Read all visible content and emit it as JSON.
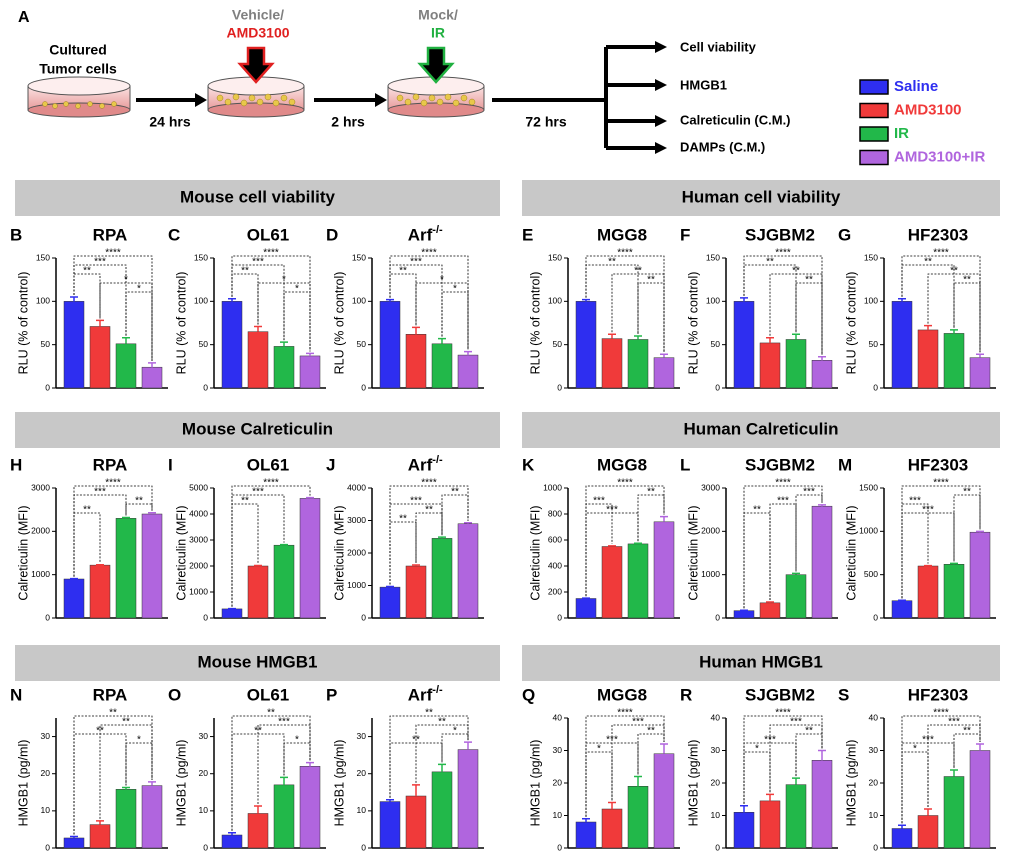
{
  "schematic": {
    "panel": "A",
    "start_lines": [
      "Cultured",
      "Tumor cells"
    ],
    "step1_time": "24 hrs",
    "treat1_control": "Vehicle/",
    "treat1_drug": "AMD3100",
    "step2_time": "2 hrs",
    "treat2_control": "Mock/",
    "treat2_drug": "IR",
    "step3_time": "72 hrs",
    "outputs": [
      "Cell viability",
      "HMGB1",
      "Calreticulin  (C.M.)",
      "DAMPs (C.M.)"
    ]
  },
  "legend": {
    "items": [
      {
        "name": "Saline",
        "color": "#2e2ef0"
      },
      {
        "name": "AMD3100",
        "color": "#f03a3a"
      },
      {
        "name": "IR",
        "color": "#22b84a"
      },
      {
        "name": "AMD3100+IR",
        "color": "#b065de"
      }
    ]
  },
  "sections": [
    "Mouse cell viability",
    "Human cell viability",
    "Mouse Calreticulin",
    "Human Calreticulin",
    "Mouse HMGB1",
    "Human HMGB1"
  ],
  "chart_data": [
    {
      "type": "bar",
      "panel": "B",
      "title": "RPA",
      "ylabel": "RLU (% of control)",
      "ylim": [
        0,
        150
      ],
      "yticks": [
        0,
        50,
        100,
        150
      ],
      "values": [
        100,
        71,
        51,
        24
      ],
      "errors": [
        5,
        7,
        7,
        5
      ],
      "annotations": [
        {
          "from": 0,
          "to": 3,
          "label": "****"
        },
        {
          "from": 0,
          "to": 2,
          "label": "***"
        },
        {
          "from": 0,
          "to": 1,
          "label": "**"
        },
        {
          "from": 1,
          "to": 3,
          "label": "*"
        },
        {
          "from": 2,
          "to": 3,
          "label": "*"
        }
      ]
    },
    {
      "type": "bar",
      "panel": "C",
      "title": "OL61",
      "ylabel": "RLU (% of control)",
      "ylim": [
        0,
        150
      ],
      "yticks": [
        0,
        50,
        100,
        150
      ],
      "values": [
        100,
        65,
        48,
        37
      ],
      "errors": [
        3,
        6,
        5,
        3
      ],
      "annotations": [
        {
          "from": 0,
          "to": 3,
          "label": "****"
        },
        {
          "from": 0,
          "to": 2,
          "label": "***"
        },
        {
          "from": 0,
          "to": 1,
          "label": "**"
        },
        {
          "from": 1,
          "to": 3,
          "label": "*"
        },
        {
          "from": 2,
          "to": 3,
          "label": "*"
        }
      ]
    },
    {
      "type": "bar",
      "panel": "D",
      "title": "Arf",
      "title_sup": "-/-",
      "ylabel": "RLU (% of control)",
      "ylim": [
        0,
        150
      ],
      "yticks": [
        0,
        50,
        100,
        150
      ],
      "values": [
        100,
        62,
        51,
        38
      ],
      "errors": [
        2,
        8,
        6,
        4
      ],
      "annotations": [
        {
          "from": 0,
          "to": 3,
          "label": "****"
        },
        {
          "from": 0,
          "to": 2,
          "label": "***"
        },
        {
          "from": 0,
          "to": 1,
          "label": "**"
        },
        {
          "from": 1,
          "to": 3,
          "label": "*"
        },
        {
          "from": 2,
          "to": 3,
          "label": "*"
        }
      ]
    },
    {
      "type": "bar",
      "panel": "E",
      "title": "MGG8",
      "ylabel": "RLU (% of control)",
      "ylim": [
        0,
        150
      ],
      "yticks": [
        0,
        50,
        100,
        150
      ],
      "values": [
        100,
        57,
        56,
        35
      ],
      "errors": [
        2,
        5,
        4,
        4
      ],
      "annotations": [
        {
          "from": 0,
          "to": 3,
          "label": "****"
        },
        {
          "from": 0,
          "to": 2,
          "label": "**"
        },
        {
          "from": 1,
          "to": 3,
          "label": "**"
        },
        {
          "from": 2,
          "to": 3,
          "label": "**"
        }
      ]
    },
    {
      "type": "bar",
      "panel": "F",
      "title": "SJGBM2",
      "ylabel": "RLU (% of control)",
      "ylim": [
        0,
        150
      ],
      "yticks": [
        0,
        50,
        100,
        150
      ],
      "values": [
        100,
        52,
        56,
        32
      ],
      "errors": [
        4,
        6,
        6,
        4
      ],
      "annotations": [
        {
          "from": 0,
          "to": 3,
          "label": "****"
        },
        {
          "from": 0,
          "to": 2,
          "label": "**"
        },
        {
          "from": 1,
          "to": 3,
          "label": "**"
        },
        {
          "from": 2,
          "to": 3,
          "label": "**"
        }
      ]
    },
    {
      "type": "bar",
      "panel": "G",
      "title": "HF2303",
      "ylabel": "RLU (% of control)",
      "ylim": [
        0,
        150
      ],
      "yticks": [
        0,
        50,
        100,
        150
      ],
      "values": [
        100,
        67,
        63,
        35
      ],
      "errors": [
        3,
        5,
        4,
        4
      ],
      "annotations": [
        {
          "from": 0,
          "to": 3,
          "label": "****"
        },
        {
          "from": 0,
          "to": 2,
          "label": "**"
        },
        {
          "from": 1,
          "to": 3,
          "label": "**"
        },
        {
          "from": 2,
          "to": 3,
          "label": "**"
        }
      ]
    },
    {
      "type": "bar",
      "panel": "H",
      "title": "RPA",
      "ylabel": "Calreticulin (MFI)",
      "ylim": [
        0,
        3000
      ],
      "yticks": [
        0,
        1000,
        2000,
        3000
      ],
      "values": [
        900,
        1220,
        2300,
        2400
      ],
      "errors": [
        10,
        10,
        20,
        30
      ],
      "annotations": [
        {
          "from": 0,
          "to": 3,
          "label": "****"
        },
        {
          "from": 0,
          "to": 2,
          "label": "***"
        },
        {
          "from": 2,
          "to": 3,
          "label": "**"
        },
        {
          "from": 0,
          "to": 1,
          "label": "**"
        }
      ]
    },
    {
      "type": "bar",
      "panel": "I",
      "title": "OL61",
      "ylabel": "Calreticulin (MFI)",
      "ylim": [
        0,
        5000
      ],
      "yticks": [
        0,
        1000,
        2000,
        3000,
        4000,
        5000
      ],
      "values": [
        350,
        2000,
        2800,
        4600
      ],
      "errors": [
        10,
        20,
        20,
        30
      ],
      "annotations": [
        {
          "from": 0,
          "to": 3,
          "label": "****"
        },
        {
          "from": 0,
          "to": 2,
          "label": "***"
        },
        {
          "from": 0,
          "to": 1,
          "label": "**"
        }
      ]
    },
    {
      "type": "bar",
      "panel": "J",
      "title": "Arf",
      "title_sup": "-/-",
      "ylabel": "Calreticulin (MFI)",
      "ylim": [
        0,
        4000
      ],
      "yticks": [
        0,
        1000,
        2000,
        3000,
        4000
      ],
      "values": [
        950,
        1600,
        2450,
        2900
      ],
      "errors": [
        20,
        30,
        40,
        30
      ],
      "annotations": [
        {
          "from": 0,
          "to": 3,
          "label": "****"
        },
        {
          "from": 2,
          "to": 3,
          "label": "**"
        },
        {
          "from": 0,
          "to": 2,
          "label": "***"
        },
        {
          "from": 1,
          "to": 2,
          "label": "**"
        },
        {
          "from": 0,
          "to": 1,
          "label": "**"
        }
      ]
    },
    {
      "type": "bar",
      "panel": "K",
      "title": "MGG8",
      "ylabel": "Calreticulin (MFI)",
      "ylim": [
        0,
        1000
      ],
      "yticks": [
        0,
        200,
        400,
        600,
        800,
        1000
      ],
      "values": [
        150,
        550,
        570,
        740
      ],
      "errors": [
        3,
        5,
        5,
        40
      ],
      "annotations": [
        {
          "from": 0,
          "to": 3,
          "label": "****"
        },
        {
          "from": 2,
          "to": 3,
          "label": "**"
        },
        {
          "from": 0,
          "to": 1,
          "label": "***"
        },
        {
          "from": 0,
          "to": 2,
          "label": "***"
        }
      ]
    },
    {
      "type": "bar",
      "panel": "L",
      "title": "SJGBM2",
      "ylabel": "Calreticulin (MFI)",
      "ylim": [
        0,
        3000
      ],
      "yticks": [
        0,
        1000,
        2000,
        3000
      ],
      "values": [
        170,
        350,
        1000,
        2580
      ],
      "errors": [
        10,
        20,
        30,
        30
      ],
      "annotations": [
        {
          "from": 0,
          "to": 3,
          "label": "****"
        },
        {
          "from": 2,
          "to": 3,
          "label": "***"
        },
        {
          "from": 1,
          "to": 2,
          "label": "***"
        },
        {
          "from": 0,
          "to": 1,
          "label": "**"
        }
      ]
    },
    {
      "type": "bar",
      "panel": "M",
      "title": "HF2303",
      "ylabel": "Calreticulin (MFI)",
      "ylim": [
        0,
        1500
      ],
      "yticks": [
        0,
        500,
        1000,
        1500
      ],
      "values": [
        200,
        600,
        620,
        990
      ],
      "errors": [
        5,
        5,
        10,
        10
      ],
      "annotations": [
        {
          "from": 0,
          "to": 3,
          "label": "****"
        },
        {
          "from": 2,
          "to": 3,
          "label": "**"
        },
        {
          "from": 0,
          "to": 1,
          "label": "***"
        },
        {
          "from": 0,
          "to": 2,
          "label": "***"
        }
      ]
    },
    {
      "type": "bar",
      "panel": "N",
      "title": "RPA",
      "ylabel": "HMGB1 (pg/ml)",
      "ylim": [
        0,
        35
      ],
      "yticks": [
        0,
        10,
        20,
        30
      ],
      "values": [
        2.7,
        6.3,
        15.8,
        16.8
      ],
      "errors": [
        0.4,
        1,
        0.5,
        1
      ],
      "annotations": [
        {
          "from": 0,
          "to": 3,
          "label": "**"
        },
        {
          "from": 1,
          "to": 3,
          "label": "**"
        },
        {
          "from": 0,
          "to": 2,
          "label": "**"
        },
        {
          "from": 2,
          "to": 3,
          "label": "*"
        }
      ]
    },
    {
      "type": "bar",
      "panel": "O",
      "title": "OL61",
      "ylabel": "HMGB1 (pg/ml)",
      "ylim": [
        0,
        35
      ],
      "yticks": [
        0,
        10,
        20,
        30
      ],
      "values": [
        3.5,
        9.3,
        17,
        22
      ],
      "errors": [
        0.6,
        2,
        2,
        1
      ],
      "annotations": [
        {
          "from": 0,
          "to": 3,
          "label": "**"
        },
        {
          "from": 1,
          "to": 3,
          "label": "***"
        },
        {
          "from": 0,
          "to": 2,
          "label": "**"
        },
        {
          "from": 2,
          "to": 3,
          "label": "*"
        }
      ]
    },
    {
      "type": "bar",
      "panel": "P",
      "title": "Arf",
      "title_sup": "-/-",
      "ylabel": "HMGB1 (pg/ml)",
      "ylim": [
        0,
        35
      ],
      "yticks": [
        0,
        10,
        20,
        30
      ],
      "values": [
        12.5,
        14,
        20.5,
        26.5
      ],
      "errors": [
        0.5,
        3,
        2,
        2
      ],
      "annotations": [
        {
          "from": 0,
          "to": 3,
          "label": "**"
        },
        {
          "from": 1,
          "to": 3,
          "label": "**"
        },
        {
          "from": 2,
          "to": 3,
          "label": "*"
        },
        {
          "from": 0,
          "to": 2,
          "label": "**"
        }
      ]
    },
    {
      "type": "bar",
      "panel": "Q",
      "title": "MGG8",
      "ylabel": "HMGB1 (pg/ml)",
      "ylim": [
        0,
        40
      ],
      "yticks": [
        0,
        10,
        20,
        30,
        40
      ],
      "values": [
        8,
        12,
        19,
        29
      ],
      "errors": [
        1,
        2,
        3,
        3
      ],
      "annotations": [
        {
          "from": 0,
          "to": 3,
          "label": "****"
        },
        {
          "from": 1,
          "to": 3,
          "label": "***"
        },
        {
          "from": 2,
          "to": 3,
          "label": "**"
        },
        {
          "from": 0,
          "to": 2,
          "label": "***"
        },
        {
          "from": 0,
          "to": 1,
          "label": "*"
        }
      ]
    },
    {
      "type": "bar",
      "panel": "R",
      "title": "SJGBM2",
      "ylabel": "HMGB1 (pg/ml)",
      "ylim": [
        0,
        40
      ],
      "yticks": [
        0,
        10,
        20,
        30,
        40
      ],
      "values": [
        11,
        14.5,
        19.5,
        27
      ],
      "errors": [
        2,
        2,
        2,
        3
      ],
      "annotations": [
        {
          "from": 0,
          "to": 3,
          "label": "****"
        },
        {
          "from": 1,
          "to": 3,
          "label": "***"
        },
        {
          "from": 2,
          "to": 3,
          "label": "**"
        },
        {
          "from": 0,
          "to": 2,
          "label": "***"
        },
        {
          "from": 0,
          "to": 1,
          "label": "*"
        }
      ]
    },
    {
      "type": "bar",
      "panel": "S",
      "title": "HF2303",
      "ylabel": "HMGB1 (pg/ml)",
      "ylim": [
        0,
        40
      ],
      "yticks": [
        0,
        10,
        20,
        30,
        40
      ],
      "values": [
        6,
        10,
        22,
        30
      ],
      "errors": [
        1,
        2,
        2,
        2
      ],
      "annotations": [
        {
          "from": 0,
          "to": 3,
          "label": "****"
        },
        {
          "from": 1,
          "to": 3,
          "label": "***"
        },
        {
          "from": 2,
          "to": 3,
          "label": "**"
        },
        {
          "from": 0,
          "to": 2,
          "label": "***"
        },
        {
          "from": 0,
          "to": 1,
          "label": "*"
        }
      ]
    }
  ]
}
